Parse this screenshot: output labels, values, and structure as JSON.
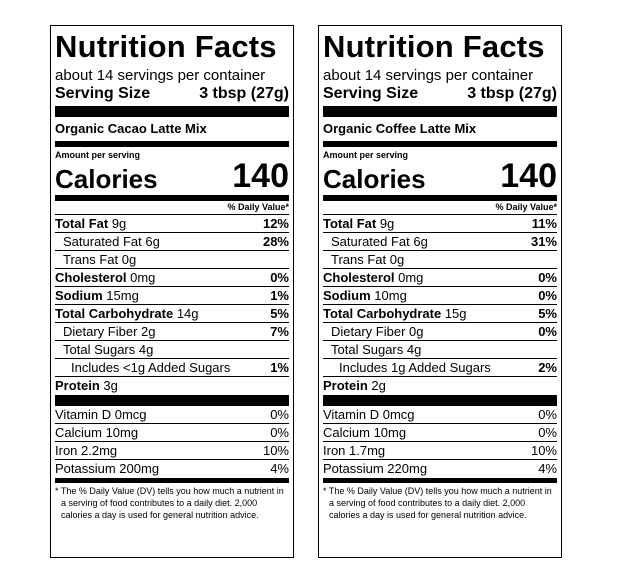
{
  "labels": [
    {
      "title": "Nutrition Facts",
      "servings": "about 14 servings per container",
      "serving_size_label": "Serving Size",
      "serving_size_value": "3 tbsp (27g)",
      "product": "Organic Cacao Latte Mix",
      "amount_per_serving": "Amount per serving",
      "calories_label": "Calories",
      "calories_value": "140",
      "dv_header": "% Daily Value*",
      "rows": [
        {
          "bold": "Total Fat",
          "rest": " 9g",
          "pct": "12%"
        },
        {
          "bold": "",
          "rest": "Saturated Fat 6g",
          "pct": "28%"
        },
        {
          "bold": "",
          "rest": "Trans Fat 0g",
          "pct": ""
        },
        {
          "bold": "Cholesterol",
          "rest": " 0mg",
          "pct": "0%"
        },
        {
          "bold": "Sodium",
          "rest": " 15mg",
          "pct": "1%"
        },
        {
          "bold": "Total Carbohydrate",
          "rest": " 14g",
          "pct": "5%"
        },
        {
          "bold": "",
          "rest": "Dietary Fiber 2g",
          "pct": "7%"
        },
        {
          "bold": "",
          "rest": "Total Sugars 4g",
          "pct": ""
        },
        {
          "bold": "",
          "rest": "Includes <1g Added Sugars",
          "pct": "1%"
        },
        {
          "bold": "Protein",
          "rest": " 3g",
          "pct": ""
        }
      ],
      "vitamins": [
        {
          "name": "Vitamin D 0mcg",
          "pct": "0%"
        },
        {
          "name": "Calcium 10mg",
          "pct": "0%"
        },
        {
          "name": "Iron 2.2mg",
          "pct": "10%"
        },
        {
          "name": "Potassium 200mg",
          "pct": "4%"
        }
      ],
      "footnote": "* The % Daily Value (DV) tells you how much a nutrient in a serving of food contributes to a daily diet. 2,000 calories a day is used for general nutrition advice."
    },
    {
      "title": "Nutrition Facts",
      "servings": "about 14 servings per container",
      "serving_size_label": "Serving Size",
      "serving_size_value": "3 tbsp (27g)",
      "product": "Organic Coffee Latte Mix",
      "amount_per_serving": "Amount per serving",
      "calories_label": "Calories",
      "calories_value": "140",
      "dv_header": "% Daily Value*",
      "rows": [
        {
          "bold": "Total Fat",
          "rest": " 9g",
          "pct": "11%"
        },
        {
          "bold": "",
          "rest": "Saturated Fat 6g",
          "pct": "31%"
        },
        {
          "bold": "",
          "rest": "Trans Fat 0g",
          "pct": ""
        },
        {
          "bold": "Cholesterol",
          "rest": " 0mg",
          "pct": "0%"
        },
        {
          "bold": "Sodium",
          "rest": " 10mg",
          "pct": "0%"
        },
        {
          "bold": "Total Carbohydrate",
          "rest": " 15g",
          "pct": "5%"
        },
        {
          "bold": "",
          "rest": "Dietary Fiber 0g",
          "pct": "0%"
        },
        {
          "bold": "",
          "rest": "Total Sugars 4g",
          "pct": ""
        },
        {
          "bold": "",
          "rest": "Includes 1g Added Sugars",
          "pct": "2%"
        },
        {
          "bold": "Protein",
          "rest": " 2g",
          "pct": ""
        }
      ],
      "vitamins": [
        {
          "name": "Vitamin D 0mcg",
          "pct": "0%"
        },
        {
          "name": "Calcium 10mg",
          "pct": "0%"
        },
        {
          "name": "Iron 1.7mg",
          "pct": "10%"
        },
        {
          "name": "Potassium 220mg",
          "pct": "4%"
        }
      ],
      "footnote": "* The % Daily Value (DV) tells you how much a nutrient in a serving of food contributes to a daily diet. 2,000 calories a day is used for general nutrition advice."
    }
  ]
}
